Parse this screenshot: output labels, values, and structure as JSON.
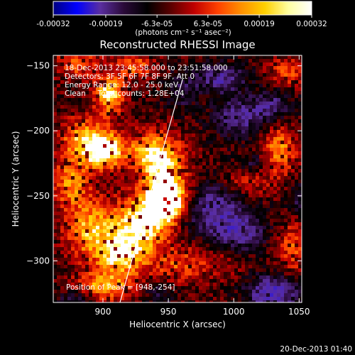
{
  "chart_data": {
    "type": "heatmap",
    "title": "Reconstructed RHESSI Image",
    "xlabel": "Heliocentric X (arcsec)",
    "ylabel": "Heliocentric Y (arcsec)",
    "xlim": [
      862,
      1052
    ],
    "ylim": [
      -332,
      -142
    ],
    "x_ticks": [
      900,
      950,
      1000,
      1050
    ],
    "y_ticks": [
      -150,
      -200,
      -250,
      -300
    ],
    "colorbar": {
      "range": [
        -0.00032,
        0.00032
      ],
      "tick_values": [
        -0.00032,
        -0.00019,
        -6.3e-05,
        6.3e-05,
        0.00019,
        0.00032
      ],
      "tick_labels": [
        "-0.00032",
        "-0.00019",
        "-6.3e-05",
        "6.3e-05",
        "0.00019",
        "0.00032"
      ],
      "unit_label": "(photons cm⁻² s⁻¹ asec⁻²)",
      "colors": [
        "#000080",
        "#0000ff",
        "#5a2ea0",
        "#2a0a38",
        "#000000",
        "#5a0000",
        "#c00000",
        "#ff4000",
        "#ff9000",
        "#ffd000",
        "#ffffa0",
        "#ffffff"
      ]
    },
    "info_lines": [
      "18-Dec-2013 23:45:58.000 to 23:51:58.000",
      "Detectors: 3F 5F 6F 7F 8F 9F, Att 0",
      "Energy Range: 12.0 - 25.0 keV",
      "Clean     Total counts: 1.28E+04"
    ],
    "peak_label": "Position of Peak = [948,-254]",
    "peak": [
      948,
      -254
    ],
    "limb_line": [
      [
        913,
        -332
      ],
      [
        961,
        -160
      ]
    ],
    "blobs": [
      {
        "x": 905,
        "y": -172,
        "sx": 8,
        "sy": 10,
        "v": 0.85
      },
      {
        "x": 925,
        "y": -150,
        "sx": 10,
        "sy": 6,
        "v": 0.5
      },
      {
        "x": 880,
        "y": -148,
        "sx": 12,
        "sy": 8,
        "v": 0.45
      },
      {
        "x": 885,
        "y": -208,
        "sx": 12,
        "sy": 12,
        "v": 0.7
      },
      {
        "x": 902,
        "y": -215,
        "sx": 10,
        "sy": 10,
        "v": 0.9
      },
      {
        "x": 935,
        "y": -215,
        "sx": 12,
        "sy": 10,
        "v": 0.55
      },
      {
        "x": 947,
        "y": -235,
        "sx": 12,
        "sy": 18,
        "v": 0.85
      },
      {
        "x": 950,
        "y": -255,
        "sx": 10,
        "sy": 10,
        "v": 1.0
      },
      {
        "x": 930,
        "y": -270,
        "sx": 14,
        "sy": 14,
        "v": 0.85
      },
      {
        "x": 915,
        "y": -295,
        "sx": 14,
        "sy": 12,
        "v": 0.8
      },
      {
        "x": 890,
        "y": -275,
        "sx": 14,
        "sy": 16,
        "v": 0.65
      },
      {
        "x": 875,
        "y": -240,
        "sx": 10,
        "sy": 12,
        "v": 0.55
      },
      {
        "x": 900,
        "y": -320,
        "sx": 16,
        "sy": 8,
        "v": 0.6
      },
      {
        "x": 955,
        "y": -305,
        "sx": 12,
        "sy": 12,
        "v": 0.35
      },
      {
        "x": 985,
        "y": -300,
        "sx": 18,
        "sy": 10,
        "v": 0.25
      },
      {
        "x": 1010,
        "y": -240,
        "sx": 12,
        "sy": 10,
        "v": 0.35
      },
      {
        "x": 1035,
        "y": -215,
        "sx": 10,
        "sy": 14,
        "v": 0.55
      },
      {
        "x": 1045,
        "y": -290,
        "sx": 8,
        "sy": 14,
        "v": 0.45
      },
      {
        "x": 1040,
        "y": -155,
        "sx": 10,
        "sy": 8,
        "v": 0.4
      },
      {
        "x": 990,
        "y": -160,
        "sx": 14,
        "sy": 8,
        "v": -0.55
      },
      {
        "x": 1005,
        "y": -190,
        "sx": 14,
        "sy": 10,
        "v": -0.55
      },
      {
        "x": 1030,
        "y": -180,
        "sx": 10,
        "sy": 8,
        "v": -0.45
      },
      {
        "x": 985,
        "y": -260,
        "sx": 20,
        "sy": 14,
        "v": -0.55
      },
      {
        "x": 1005,
        "y": -280,
        "sx": 14,
        "sy": 10,
        "v": -0.5
      },
      {
        "x": 1030,
        "y": -325,
        "sx": 14,
        "sy": 10,
        "v": -0.7
      },
      {
        "x": 880,
        "y": -330,
        "sx": 10,
        "sy": 6,
        "v": -0.4
      },
      {
        "x": 945,
        "y": -325,
        "sx": 10,
        "sy": 8,
        "v": -0.3
      },
      {
        "x": 960,
        "y": -170,
        "sx": 8,
        "sy": 10,
        "v": -0.3
      },
      {
        "x": 1015,
        "y": -225,
        "sx": 8,
        "sy": 6,
        "v": -0.35
      },
      {
        "x": 1050,
        "y": -250,
        "sx": 6,
        "sy": 10,
        "v": -0.3
      }
    ]
  },
  "footer": {
    "timestamp": "20-Dec-2013 01:40"
  }
}
